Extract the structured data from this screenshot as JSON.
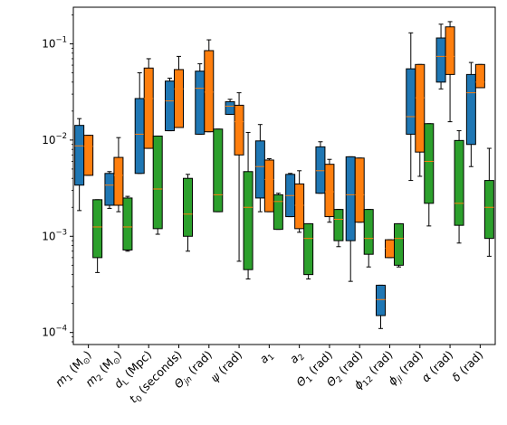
{
  "chart_data": {
    "type": "box",
    "title": "",
    "xlabel": "",
    "ylabel": "",
    "yscale": "log",
    "ylim": [
      7.5e-05,
      0.24
    ],
    "y_ticks": [
      {
        "value": 0.0001,
        "base": "10",
        "exp": "−4"
      },
      {
        "value": 0.001,
        "base": "10",
        "exp": "−3"
      },
      {
        "value": 0.01,
        "base": "10",
        "exp": "−2"
      },
      {
        "value": 0.1,
        "base": "10",
        "exp": "−1"
      }
    ],
    "categories": [
      {
        "main": "m",
        "sub": "1",
        "tail": " (M",
        "tailsub": "⊙",
        "end": ")"
      },
      {
        "main": "m",
        "sub": "2",
        "tail": " (M",
        "tailsub": "⊙",
        "end": ")"
      },
      {
        "main": "d",
        "sub": "L",
        "tail": " (Mpc)",
        "tailsub": "",
        "end": ""
      },
      {
        "main": "t",
        "sub": "0",
        "tail": " (seconds)",
        "tailsub": "",
        "end": ""
      },
      {
        "main": "Θ",
        "sub": "jn",
        "tail": " (rad)",
        "tailsub": "",
        "end": ""
      },
      {
        "main": "ψ",
        "sub": "",
        "tail": " (rad)",
        "tailsub": "",
        "end": ""
      },
      {
        "main": "a",
        "sub": "1",
        "tail": "",
        "tailsub": "",
        "end": ""
      },
      {
        "main": "a",
        "sub": "2",
        "tail": "",
        "tailsub": "",
        "end": ""
      },
      {
        "main": "Θ",
        "sub": "1",
        "tail": " (rad)",
        "tailsub": "",
        "end": ""
      },
      {
        "main": "Θ",
        "sub": "2",
        "tail": " (rad)",
        "tailsub": "",
        "end": ""
      },
      {
        "main": "ϕ",
        "sub": "12",
        "tail": " (rad)",
        "tailsub": "",
        "end": ""
      },
      {
        "main": "ϕ",
        "sub": "jl",
        "tail": " (rad)",
        "tailsub": "",
        "end": ""
      },
      {
        "main": "α",
        "sub": "",
        "tail": " (rad)",
        "tailsub": "",
        "end": ""
      },
      {
        "main": "δ",
        "sub": "",
        "tail": " (rad)",
        "tailsub": "",
        "end": ""
      }
    ],
    "colors": {
      "blue": "#1f77b4",
      "orange": "#ff7f0e",
      "green": "#2ca02c",
      "median_line": "#ff7f0e"
    },
    "grid": false,
    "legend": "none",
    "boxes": [
      {
        "category": 0,
        "series": "blue",
        "whislo": 0.00185,
        "q1": 0.0034,
        "med": 0.0087,
        "q3": 0.0142,
        "whishi": 0.0167
      },
      {
        "category": 0,
        "series": "orange",
        "whislo": 0.0043,
        "q1": 0.0043,
        "med": 0.0086,
        "q3": 0.0112,
        "whishi": 0.0112
      },
      {
        "category": 0,
        "series": "green",
        "whislo": 0.00042,
        "q1": 0.0006,
        "med": 0.00125,
        "q3": 0.0024,
        "whishi": 0.0024
      },
      {
        "category": 1,
        "series": "blue",
        "whislo": 0.00195,
        "q1": 0.0021,
        "med": 0.0034,
        "q3": 0.0045,
        "whishi": 0.0047
      },
      {
        "category": 1,
        "series": "orange",
        "whislo": 0.0018,
        "q1": 0.0021,
        "med": 0.0043,
        "q3": 0.0066,
        "whishi": 0.0106
      },
      {
        "category": 1,
        "series": "green",
        "whislo": 0.0007,
        "q1": 0.00072,
        "med": 0.00125,
        "q3": 0.0025,
        "whishi": 0.0026
      },
      {
        "category": 2,
        "series": "blue",
        "whislo": 0.0045,
        "q1": 0.0045,
        "med": 0.0115,
        "q3": 0.027,
        "whishi": 0.05
      },
      {
        "category": 2,
        "series": "orange",
        "whislo": 0.0082,
        "q1": 0.0082,
        "med": 0.027,
        "q3": 0.056,
        "whishi": 0.07
      },
      {
        "category": 2,
        "series": "green",
        "whislo": 0.00105,
        "q1": 0.0012,
        "med": 0.0031,
        "q3": 0.011,
        "whishi": 0.011
      },
      {
        "category": 3,
        "series": "blue",
        "whislo": 0.0125,
        "q1": 0.0125,
        "med": 0.0255,
        "q3": 0.041,
        "whishi": 0.044
      },
      {
        "category": 3,
        "series": "orange",
        "whislo": 0.0135,
        "q1": 0.0135,
        "med": 0.034,
        "q3": 0.054,
        "whishi": 0.074
      },
      {
        "category": 3,
        "series": "green",
        "whislo": 0.0007,
        "q1": 0.001,
        "med": 0.0017,
        "q3": 0.004,
        "whishi": 0.0044
      },
      {
        "category": 4,
        "series": "blue",
        "whislo": 0.0115,
        "q1": 0.0115,
        "med": 0.0345,
        "q3": 0.052,
        "whishi": 0.062
      },
      {
        "category": 4,
        "series": "orange",
        "whislo": 0.0122,
        "q1": 0.0122,
        "med": 0.0315,
        "q3": 0.085,
        "whishi": 0.11
      },
      {
        "category": 4,
        "series": "green",
        "whislo": 0.0018,
        "q1": 0.0018,
        "med": 0.0027,
        "q3": 0.013,
        "whishi": 0.013
      },
      {
        "category": 5,
        "series": "blue",
        "whislo": 0.0185,
        "q1": 0.0185,
        "med": 0.0225,
        "q3": 0.025,
        "whishi": 0.0265
      },
      {
        "category": 5,
        "series": "orange",
        "whislo": 0.00055,
        "q1": 0.007,
        "med": 0.0155,
        "q3": 0.023,
        "whishi": 0.031
      },
      {
        "category": 5,
        "series": "green",
        "whislo": 0.00036,
        "q1": 0.00045,
        "med": 0.002,
        "q3": 0.0047,
        "whishi": 0.012
      },
      {
        "category": 6,
        "series": "blue",
        "whislo": 0.0018,
        "q1": 0.0025,
        "med": 0.0053,
        "q3": 0.0098,
        "whishi": 0.0145
      },
      {
        "category": 6,
        "series": "orange",
        "whislo": 0.0018,
        "q1": 0.0018,
        "med": 0.0039,
        "q3": 0.0062,
        "whishi": 0.0064
      },
      {
        "category": 6,
        "series": "green",
        "whislo": 0.00118,
        "q1": 0.00118,
        "med": 0.0023,
        "q3": 0.0027,
        "whishi": 0.0028
      },
      {
        "category": 7,
        "series": "blue",
        "whislo": 0.0016,
        "q1": 0.0016,
        "med": 0.00265,
        "q3": 0.0044,
        "whishi": 0.0045
      },
      {
        "category": 7,
        "series": "orange",
        "whislo": 0.0011,
        "q1": 0.0012,
        "med": 0.0021,
        "q3": 0.0035,
        "whishi": 0.0048
      },
      {
        "category": 7,
        "series": "green",
        "whislo": 0.00036,
        "q1": 0.0004,
        "med": 0.00095,
        "q3": 0.00135,
        "whishi": 0.00135
      },
      {
        "category": 8,
        "series": "blue",
        "whislo": 0.0028,
        "q1": 0.0028,
        "med": 0.0048,
        "q3": 0.0085,
        "whishi": 0.0096
      },
      {
        "category": 8,
        "series": "orange",
        "whislo": 0.0014,
        "q1": 0.0016,
        "med": 0.0029,
        "q3": 0.0056,
        "whishi": 0.0063
      },
      {
        "category": 8,
        "series": "green",
        "whislo": 0.00078,
        "q1": 0.0009,
        "med": 0.0015,
        "q3": 0.0019,
        "whishi": 0.0019
      },
      {
        "category": 9,
        "series": "blue",
        "whislo": 0.00034,
        "q1": 0.0009,
        "med": 0.0027,
        "q3": 0.0067,
        "whishi": 0.0067
      },
      {
        "category": 9,
        "series": "orange",
        "whislo": 0.0014,
        "q1": 0.0014,
        "med": 0.0027,
        "q3": 0.0065,
        "whishi": 0.0065
      },
      {
        "category": 9,
        "series": "green",
        "whislo": 0.00048,
        "q1": 0.00065,
        "med": 0.00095,
        "q3": 0.0019,
        "whishi": 0.0019
      },
      {
        "category": 10,
        "series": "blue",
        "whislo": 0.00011,
        "q1": 0.00015,
        "med": 0.00022,
        "q3": 0.00031,
        "whishi": 0.00031
      },
      {
        "category": 10,
        "series": "orange",
        "whislo": 0.0006,
        "q1": 0.0006,
        "med": 0.00075,
        "q3": 0.00092,
        "whishi": 0.00092
      },
      {
        "category": 10,
        "series": "green",
        "whislo": 0.00048,
        "q1": 0.0005,
        "med": 0.00095,
        "q3": 0.00135,
        "whishi": 0.00135
      },
      {
        "category": 11,
        "series": "blue",
        "whislo": 0.0038,
        "q1": 0.0115,
        "med": 0.0175,
        "q3": 0.055,
        "whishi": 0.13
      },
      {
        "category": 11,
        "series": "orange",
        "whislo": 0.0042,
        "q1": 0.0075,
        "med": 0.0275,
        "q3": 0.061,
        "whishi": 0.061
      },
      {
        "category": 11,
        "series": "green",
        "whislo": 0.00128,
        "q1": 0.0022,
        "med": 0.006,
        "q3": 0.0148,
        "whishi": 0.0148
      },
      {
        "category": 12,
        "series": "blue",
        "whislo": 0.034,
        "q1": 0.04,
        "med": 0.074,
        "q3": 0.115,
        "whishi": 0.16
      },
      {
        "category": 12,
        "series": "orange",
        "whislo": 0.0155,
        "q1": 0.048,
        "med": 0.074,
        "q3": 0.15,
        "whishi": 0.17
      },
      {
        "category": 12,
        "series": "green",
        "whislo": 0.00085,
        "q1": 0.0013,
        "med": 0.0022,
        "q3": 0.0099,
        "whishi": 0.0125
      },
      {
        "category": 13,
        "series": "blue",
        "whislo": 0.0053,
        "q1": 0.009,
        "med": 0.031,
        "q3": 0.048,
        "whishi": 0.064
      },
      {
        "category": 13,
        "series": "orange",
        "whislo": 0.035,
        "q1": 0.035,
        "med": 0.04,
        "q3": 0.061,
        "whishi": 0.061
      },
      {
        "category": 13,
        "series": "green",
        "whislo": 0.00062,
        "q1": 0.00095,
        "med": 0.002,
        "q3": 0.0038,
        "whishi": 0.0082
      }
    ]
  }
}
